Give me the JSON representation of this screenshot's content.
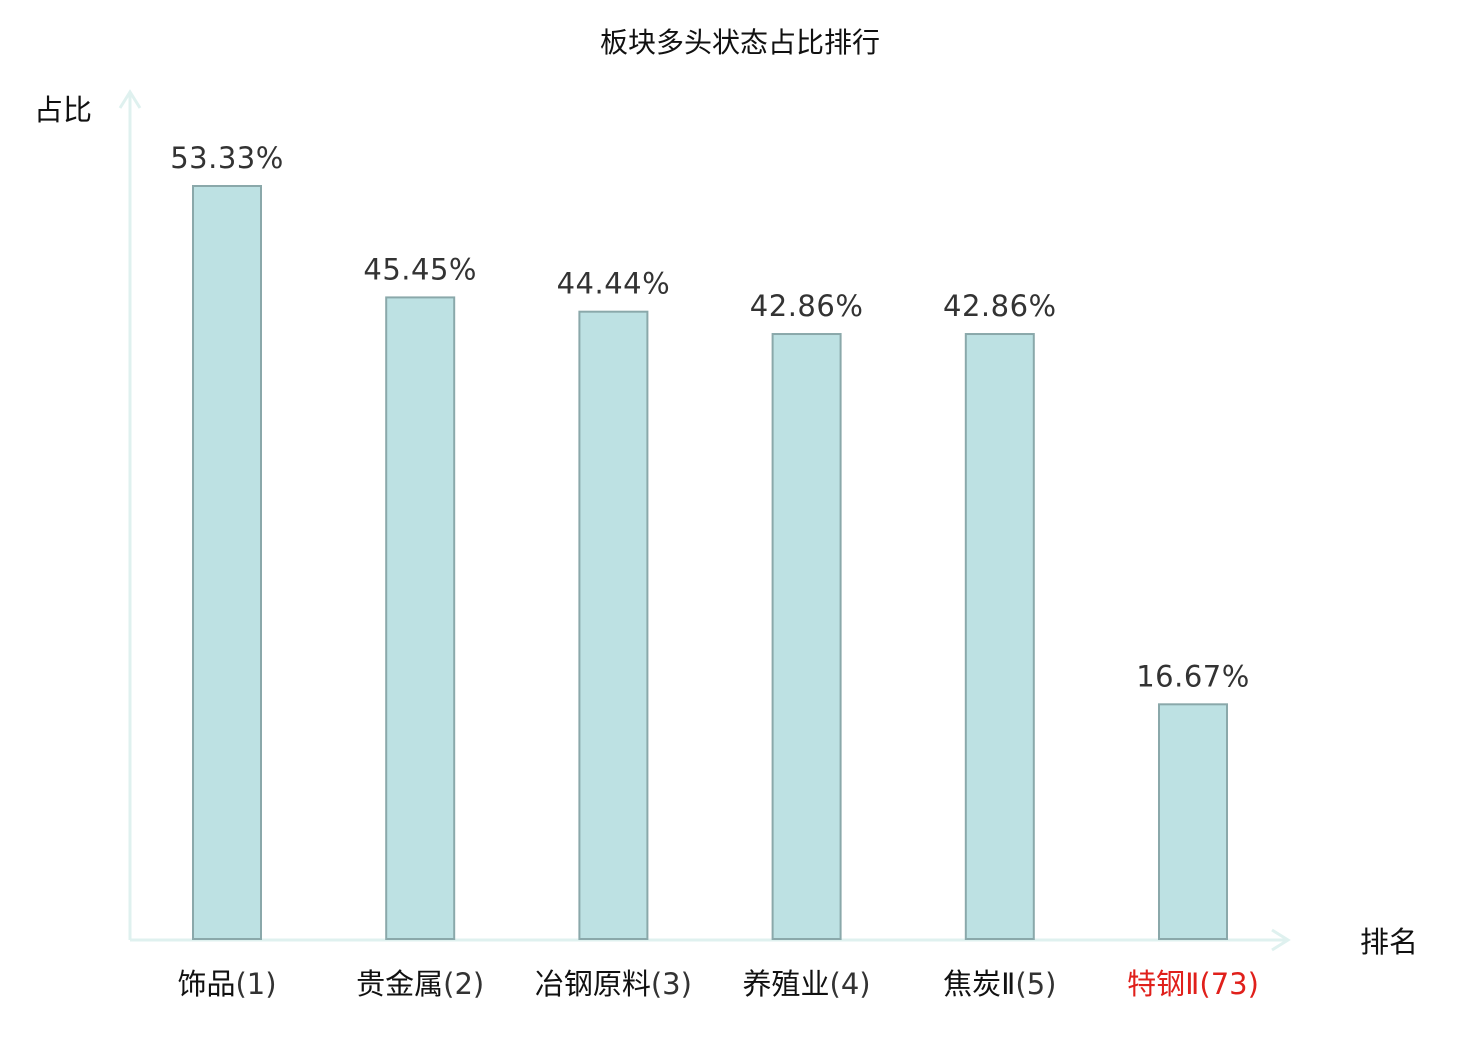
{
  "chart_data": {
    "type": "bar",
    "title": "板块多头状态占比排行",
    "xlabel": "排名",
    "ylabel": "占比",
    "ylim": [
      0,
      60
    ],
    "grid": false,
    "categories": [
      {
        "name": "饰品",
        "rank": "(1)"
      },
      {
        "name": "贵金属",
        "rank": "(2)"
      },
      {
        "name": "冶钢原料",
        "rank": "(3)"
      },
      {
        "name": "养殖业",
        "rank": "(4)"
      },
      {
        "name": "焦炭Ⅱ",
        "rank": "(5)"
      },
      {
        "name": "特钢Ⅱ",
        "rank": "(73)"
      }
    ],
    "values": [
      53.33,
      45.45,
      44.44,
      42.86,
      42.86,
      16.67
    ],
    "value_labels": [
      "53.33%",
      "45.45%",
      "44.44%",
      "42.86%",
      "42.86%",
      "16.67%"
    ],
    "colors": {
      "bar_fill": "#bde1e3",
      "bar_stroke": "#8aa8aa",
      "axis": "#dff1ef",
      "label": "#111111",
      "rank": "#333333",
      "highlight": "#e0201b"
    },
    "highlight_index": 5
  }
}
